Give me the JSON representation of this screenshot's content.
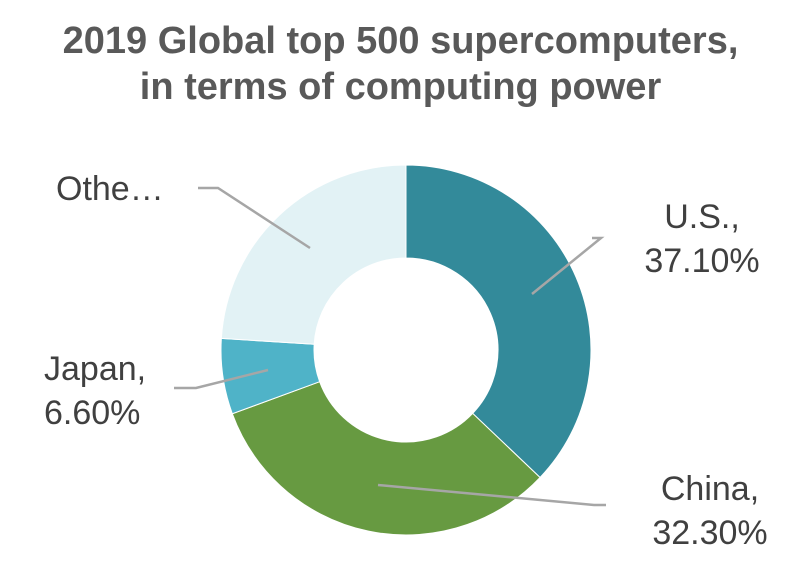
{
  "chart_data": {
    "type": "pie",
    "variant": "donut",
    "title_lines": [
      "2019 Global top 500 supercomputers,",
      "in terms of computing power"
    ],
    "slices": [
      {
        "name": "U.S.",
        "value": 37.1,
        "label_lines": [
          "U.S.,",
          "37.10%"
        ],
        "color": "#338a9a"
      },
      {
        "name": "China",
        "value": 32.3,
        "label_lines": [
          "China,",
          "32.30%"
        ],
        "color": "#679a41"
      },
      {
        "name": "Japan",
        "value": 6.6,
        "label_lines": [
          "Japan,",
          "6.60%"
        ],
        "color": "#4fb3c8"
      },
      {
        "name": "Other",
        "value": 24.0,
        "label_lines": [
          "Othe…"
        ],
        "color": "#e2f2f5"
      }
    ],
    "start_angle_deg": 0,
    "direction": "clockwise",
    "leader_line_color": "#a6a6a6",
    "label_color": "#404040"
  }
}
